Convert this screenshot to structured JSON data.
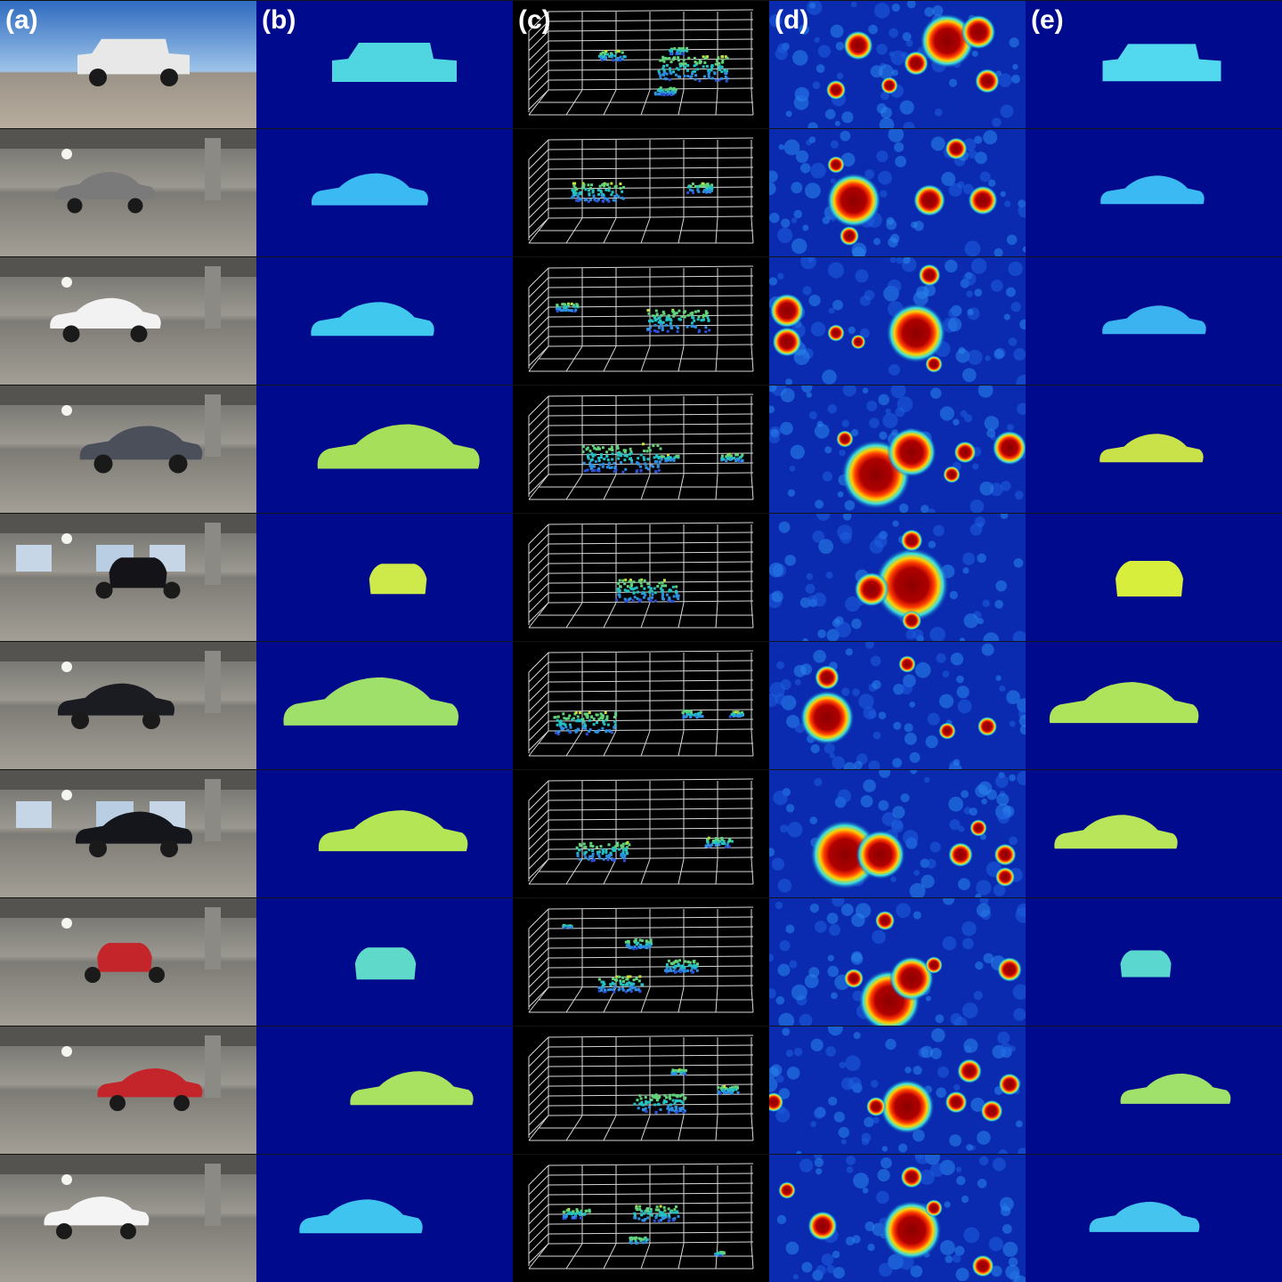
{
  "figure": {
    "columns": [
      {
        "key": "a",
        "label": "(a)"
      },
      {
        "key": "b",
        "label": "(b)"
      },
      {
        "key": "c",
        "label": "(c)"
      },
      {
        "key": "d",
        "label": "(d)"
      },
      {
        "key": "e",
        "label": "(e)"
      }
    ],
    "rows": [
      {
        "car_color": "#e8e8e8",
        "car_kind": "jeep",
        "scene": "rooftop",
        "depth_b": "#4fd6e0",
        "depth_e": "#52d8ef"
      },
      {
        "car_color": "#7a7a7a",
        "car_kind": "wagon",
        "scene": "garage",
        "depth_b": "#3ab9f2",
        "depth_e": "#3ab9f2"
      },
      {
        "car_color": "#f2f2f2",
        "car_kind": "sedan",
        "scene": "garage",
        "depth_b": "#41c8ef",
        "depth_e": "#3bb3f0"
      },
      {
        "car_color": "#4a4f5a",
        "car_kind": "sedan",
        "scene": "garage",
        "depth_b": "#a6e05a",
        "depth_e": "#c9e24a"
      },
      {
        "car_color": "#141418",
        "car_kind": "rear",
        "scene": "windows",
        "depth_b": "#cde94a",
        "depth_e": "#d8ee3c"
      },
      {
        "car_color": "#1b1c22",
        "car_kind": "sedan",
        "scene": "garage",
        "depth_b": "#9fe06a",
        "depth_e": "#aee45c"
      },
      {
        "car_color": "#15161b",
        "car_kind": "sedan",
        "scene": "windows",
        "depth_b": "#b4e554",
        "depth_e": "#b9e55a"
      },
      {
        "car_color": "#c4252a",
        "car_kind": "front",
        "scene": "garage",
        "depth_b": "#5fd9c9",
        "depth_e": "#5ad8d0"
      },
      {
        "car_color": "#c3252b",
        "car_kind": "sedan",
        "scene": "garage",
        "depth_b": "#a8e260",
        "depth_e": "#9fe16a"
      },
      {
        "car_color": "#f4f4f4",
        "car_kind": "sedan",
        "scene": "garage",
        "depth_b": "#3fc3ef",
        "depth_e": "#45c4f0"
      }
    ],
    "colors": {
      "depth_background": "#000a8c",
      "heat_background": "#0a2ab0",
      "pointcloud_background": "#000000",
      "grid": "#d8d8d8"
    }
  }
}
